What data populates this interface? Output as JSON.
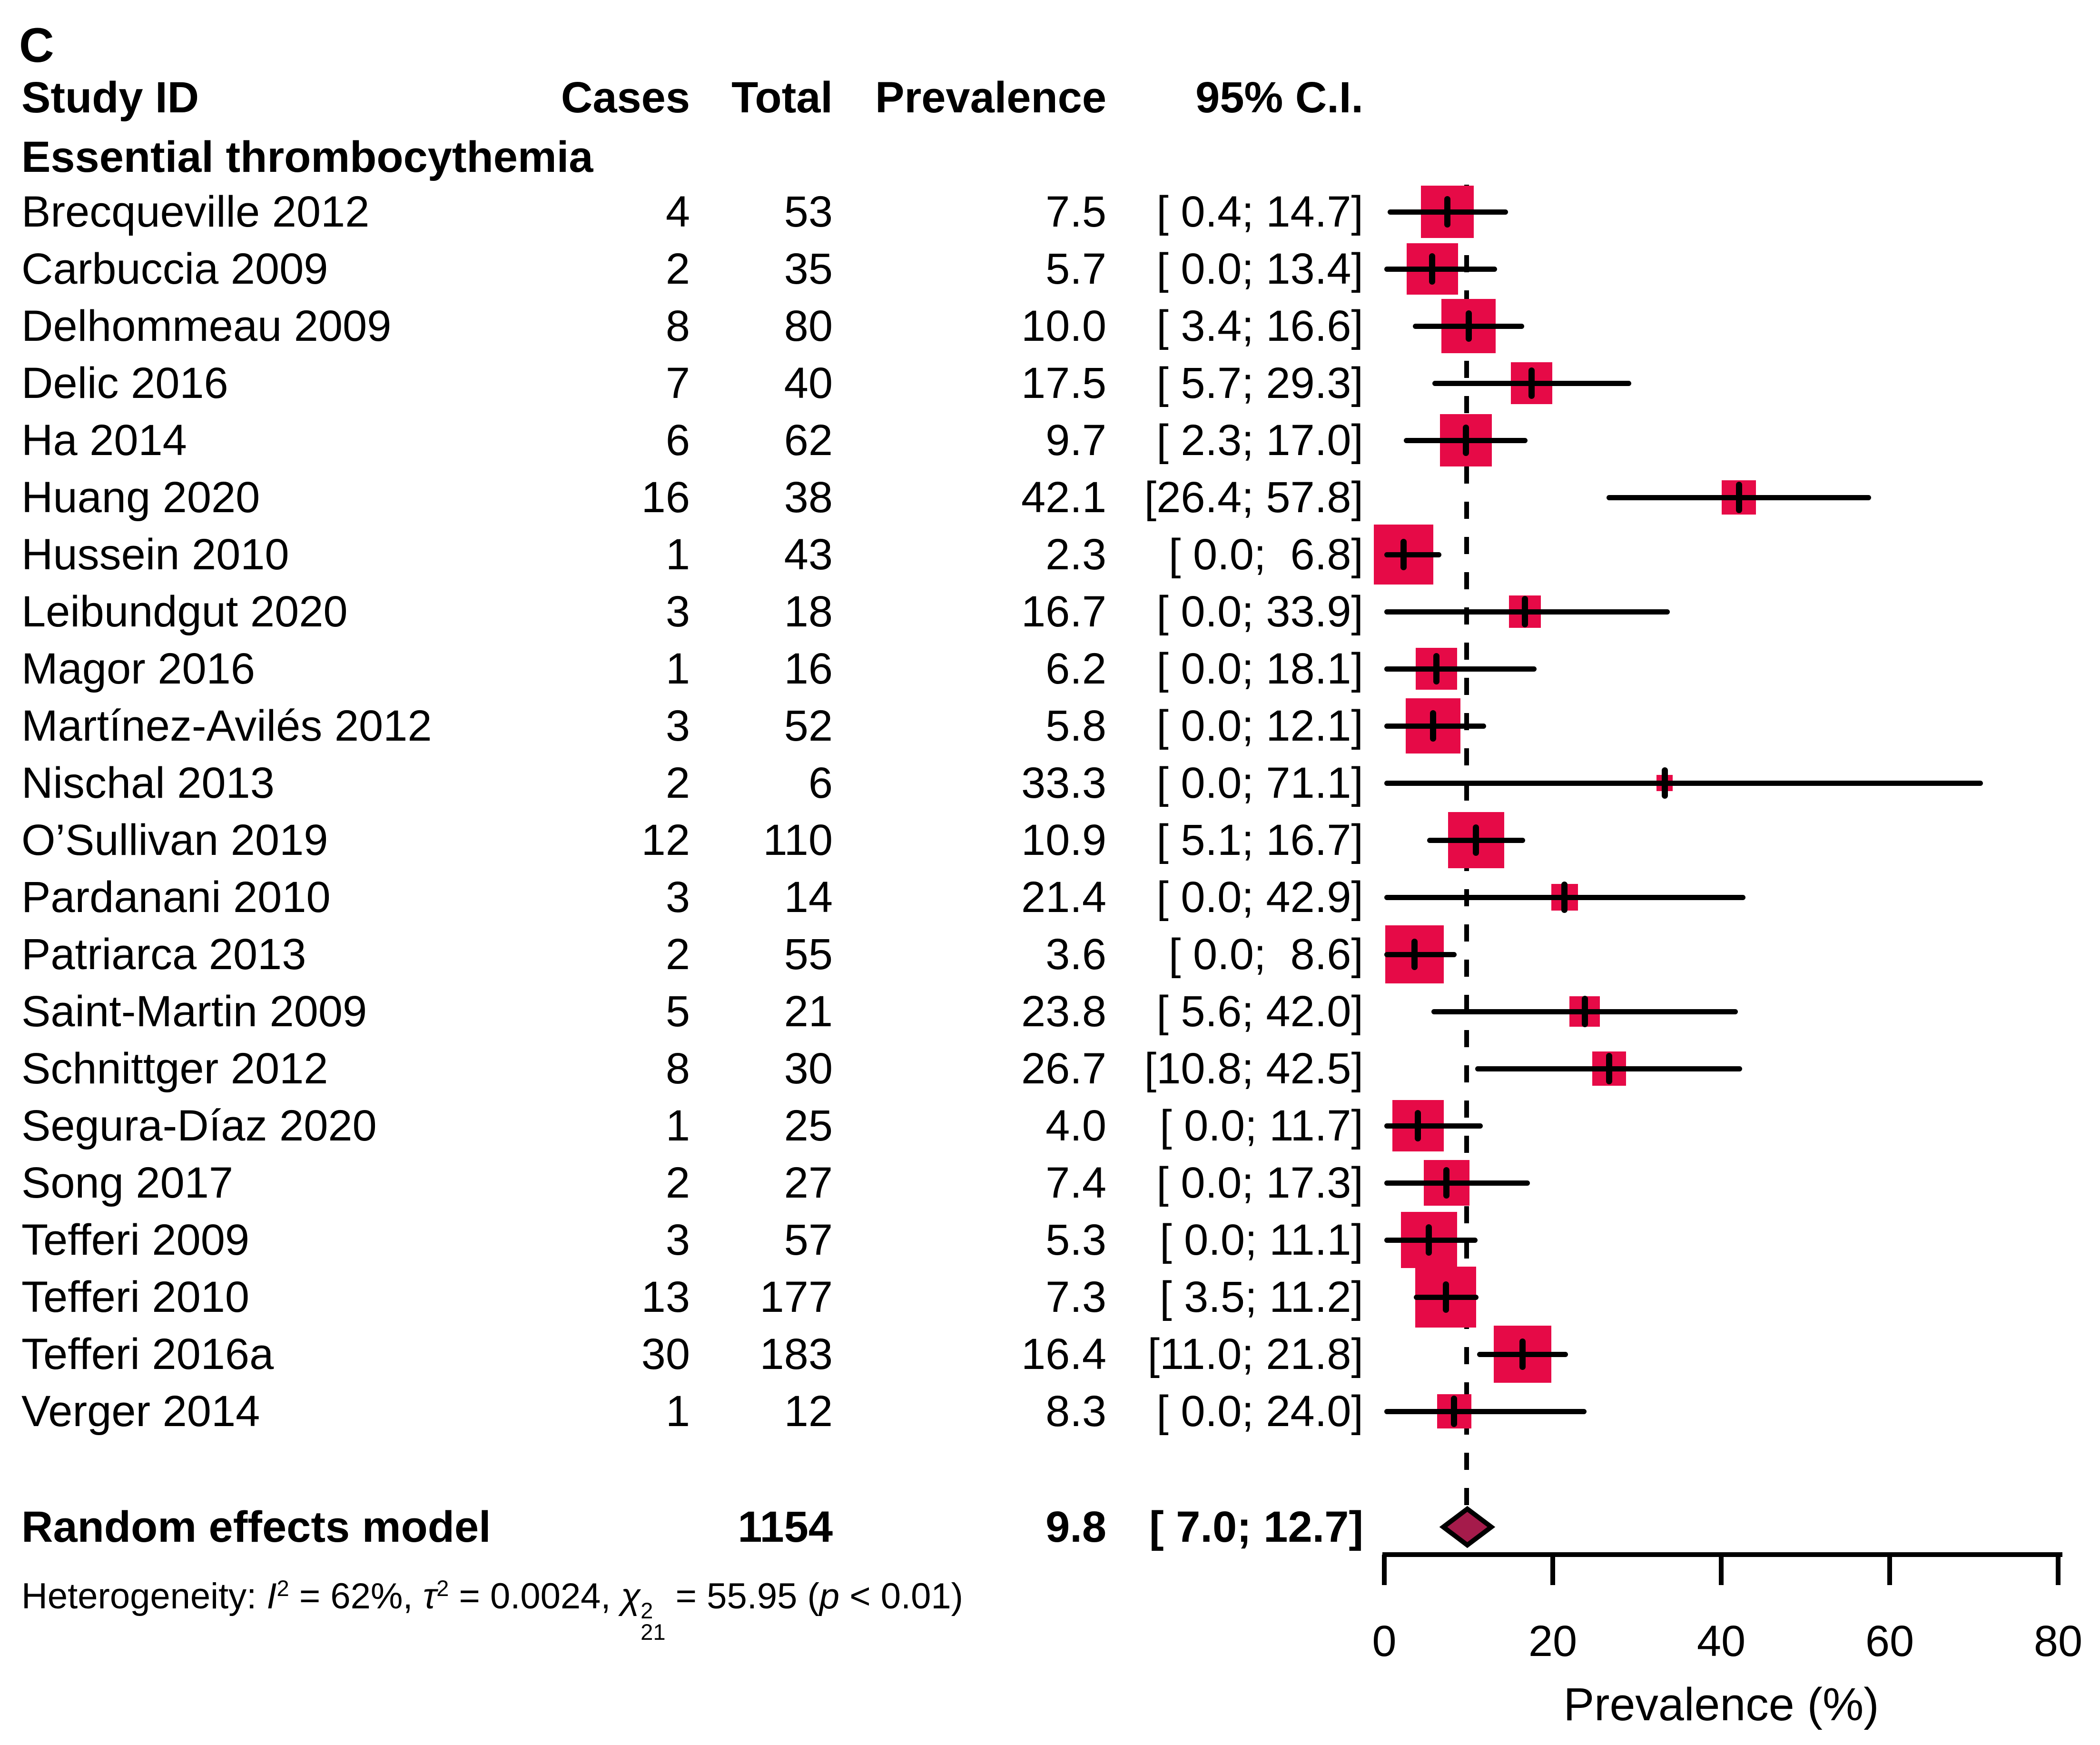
{
  "panel_label": "C",
  "columns": {
    "study": "Study ID",
    "cases": "Cases",
    "total": "Total",
    "prevalence": "Prevalence",
    "ci": "95% C.I."
  },
  "chart_data": {
    "type": "forest",
    "group": "Essential thrombocythemia",
    "xlabel": "Prevalence (%)",
    "xlim": [
      0,
      80
    ],
    "xticks": [
      0,
      20,
      40,
      60,
      80
    ],
    "tau2": 0.0024,
    "studies": [
      {
        "label": "Brecqueville 2012",
        "cases": 4,
        "total": 53,
        "prevalence": "7.5",
        "ci": [
          0.4,
          14.7
        ],
        "ci_text": "[ 0.4; 14.7]"
      },
      {
        "label": "Carbuccia 2009",
        "cases": 2,
        "total": 35,
        "prevalence": "5.7",
        "ci": [
          0.0,
          13.4
        ],
        "ci_text": "[ 0.0; 13.4]"
      },
      {
        "label": "Delhommeau 2009",
        "cases": 8,
        "total": 80,
        "prevalence": "10.0",
        "ci": [
          3.4,
          16.6
        ],
        "ci_text": "[ 3.4; 16.6]"
      },
      {
        "label": "Delic 2016",
        "cases": 7,
        "total": 40,
        "prevalence": "17.5",
        "ci": [
          5.7,
          29.3
        ],
        "ci_text": "[ 5.7; 29.3]"
      },
      {
        "label": "Ha 2014",
        "cases": 6,
        "total": 62,
        "prevalence": "9.7",
        "ci": [
          2.3,
          17.0
        ],
        "ci_text": "[ 2.3; 17.0]"
      },
      {
        "label": "Huang 2020",
        "cases": 16,
        "total": 38,
        "prevalence": "42.1",
        "ci": [
          26.4,
          57.8
        ],
        "ci_text": "[26.4; 57.8]"
      },
      {
        "label": "Hussein 2010",
        "cases": 1,
        "total": 43,
        "prevalence": "2.3",
        "ci": [
          0.0,
          6.8
        ],
        "ci_text": "[ 0.0;  6.8]"
      },
      {
        "label": "Leibundgut 2020",
        "cases": 3,
        "total": 18,
        "prevalence": "16.7",
        "ci": [
          0.0,
          33.9
        ],
        "ci_text": "[ 0.0; 33.9]"
      },
      {
        "label": "Magor 2016",
        "cases": 1,
        "total": 16,
        "prevalence": "6.2",
        "ci": [
          0.0,
          18.1
        ],
        "ci_text": "[ 0.0; 18.1]"
      },
      {
        "label": "Martínez-Avilés 2012",
        "cases": 3,
        "total": 52,
        "prevalence": "5.8",
        "ci": [
          0.0,
          12.1
        ],
        "ci_text": "[ 0.0; 12.1]"
      },
      {
        "label": "Nischal 2013",
        "cases": 2,
        "total": 6,
        "prevalence": "33.3",
        "ci": [
          0.0,
          71.1
        ],
        "ci_text": "[ 0.0; 71.1]"
      },
      {
        "label": "O’Sullivan 2019",
        "cases": 12,
        "total": 110,
        "prevalence": "10.9",
        "ci": [
          5.1,
          16.7
        ],
        "ci_text": "[ 5.1; 16.7]"
      },
      {
        "label": "Pardanani 2010",
        "cases": 3,
        "total": 14,
        "prevalence": "21.4",
        "ci": [
          0.0,
          42.9
        ],
        "ci_text": "[ 0.0; 42.9]"
      },
      {
        "label": "Patriarca 2013",
        "cases": 2,
        "total": 55,
        "prevalence": "3.6",
        "ci": [
          0.0,
          8.6
        ],
        "ci_text": "[ 0.0;  8.6]"
      },
      {
        "label": "Saint-Martin 2009",
        "cases": 5,
        "total": 21,
        "prevalence": "23.8",
        "ci": [
          5.6,
          42.0
        ],
        "ci_text": "[ 5.6; 42.0]"
      },
      {
        "label": "Schnittger 2012",
        "cases": 8,
        "total": 30,
        "prevalence": "26.7",
        "ci": [
          10.8,
          42.5
        ],
        "ci_text": "[10.8; 42.5]"
      },
      {
        "label": "Segura-Díaz 2020",
        "cases": 1,
        "total": 25,
        "prevalence": "4.0",
        "ci": [
          0.0,
          11.7
        ],
        "ci_text": "[ 0.0; 11.7]"
      },
      {
        "label": "Song 2017",
        "cases": 2,
        "total": 27,
        "prevalence": "7.4",
        "ci": [
          0.0,
          17.3
        ],
        "ci_text": "[ 0.0; 17.3]"
      },
      {
        "label": "Tefferi 2009",
        "cases": 3,
        "total": 57,
        "prevalence": "5.3",
        "ci": [
          0.0,
          11.1
        ],
        "ci_text": "[ 0.0; 11.1]"
      },
      {
        "label": "Tefferi 2010",
        "cases": 13,
        "total": 177,
        "prevalence": "7.3",
        "ci": [
          3.5,
          11.2
        ],
        "ci_text": "[ 3.5; 11.2]"
      },
      {
        "label": "Tefferi 2016a",
        "cases": 30,
        "total": 183,
        "prevalence": "16.4",
        "ci": [
          11.0,
          21.8
        ],
        "ci_text": "[11.0; 21.8]"
      },
      {
        "label": "Verger 2014",
        "cases": 1,
        "total": 12,
        "prevalence": "8.3",
        "ci": [
          0.0,
          24.0
        ],
        "ci_text": "[ 0.0; 24.0]"
      }
    ],
    "summary": {
      "label": "Random effects model",
      "total": 1154,
      "prevalence": "9.8",
      "ci": [
        7.0,
        12.7
      ],
      "ci_text": "[ 7.0; 12.7]"
    },
    "heterogeneity_html": "Heterogeneity: <i>I</i><sup>2</sup> = 62%, <i>τ</i><sup>2</sup> = 0.0024, <i>χ</i><span class=ss><span>2</span><span>21</span></span> = 55.95 (<i>p</i> &lt; 0.01)",
    "colors": {
      "square": "#E60A47",
      "diamond": "#A51B4B",
      "line": "#000000"
    },
    "legend": null,
    "grid": false
  }
}
